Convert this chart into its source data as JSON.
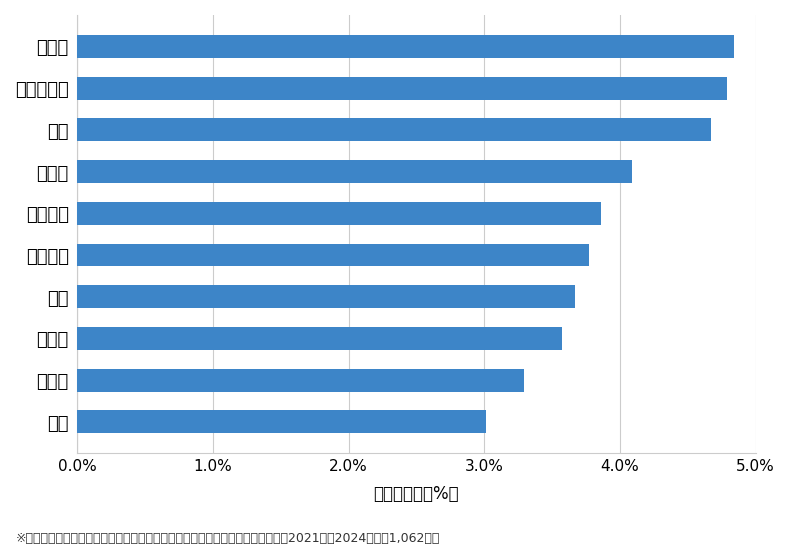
{
  "categories": [
    "桜台",
    "関町北",
    "春日町",
    "北町",
    "石神井町",
    "石神井台",
    "大泉町",
    "田柄",
    "大泉学園町",
    "東大泉"
  ],
  "values": [
    3.01,
    3.29,
    3.57,
    3.67,
    3.77,
    3.86,
    4.09,
    4.67,
    4.79,
    4.84
  ],
  "bar_color": "#3d85c8",
  "xlabel": "件数の割合（%）",
  "xlim": [
    0,
    5.0
  ],
  "xtick_values": [
    0.0,
    1.0,
    2.0,
    3.0,
    4.0,
    5.0
  ],
  "xtick_labels": [
    "0.0%",
    "1.0%",
    "2.0%",
    "3.0%",
    "4.0%",
    "5.0%"
  ],
  "footnote": "※弊社受付の案件を対象に、受付時に市区町村の回答があったものを集計（期間2021年〜2024年、計1,062件）",
  "background_color": "#ffffff",
  "grid_color": "#cccccc",
  "bar_height": 0.55,
  "ytick_fontsize": 13,
  "xtick_fontsize": 11,
  "xlabel_fontsize": 12,
  "footnote_fontsize": 9
}
